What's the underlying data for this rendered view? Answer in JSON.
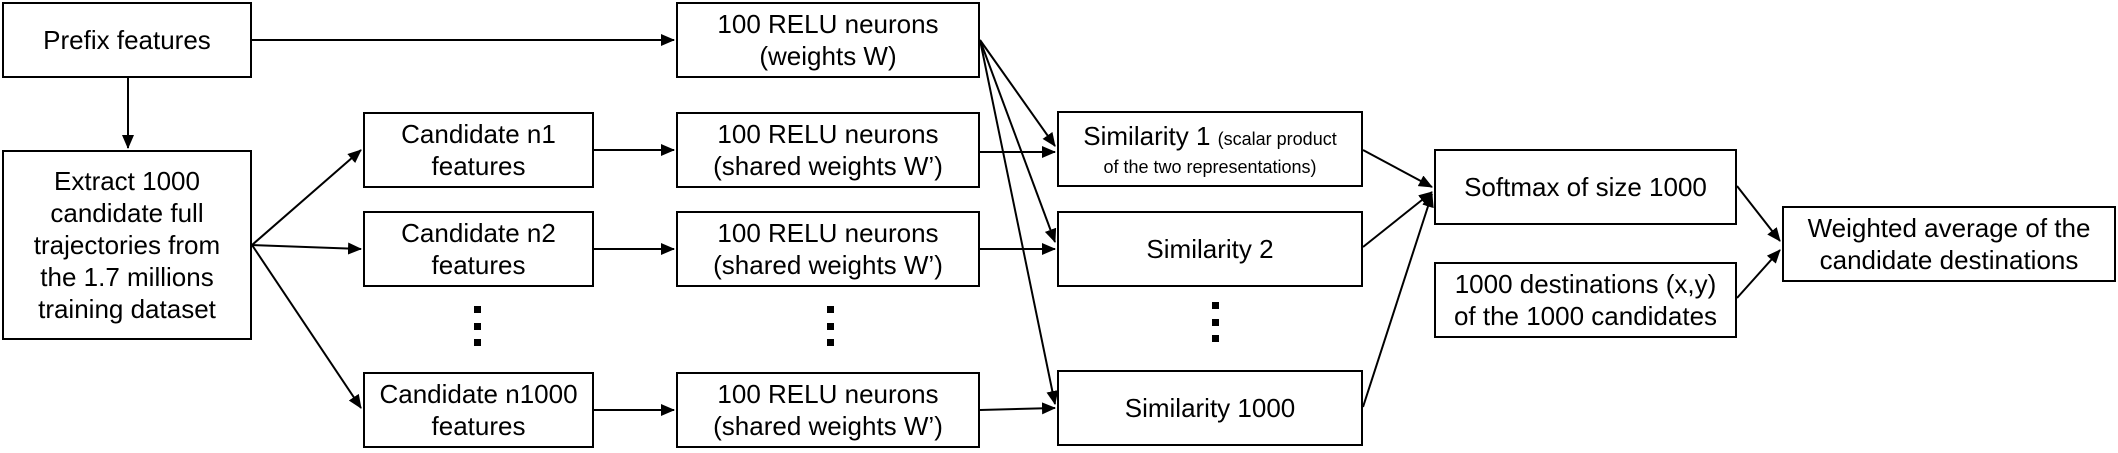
{
  "nodes": {
    "prefix": [
      "Prefix features"
    ],
    "extract": [
      "Extract 1000",
      "candidate full",
      "trajectories from",
      "the 1.7 millions",
      "training dataset"
    ],
    "relu_main": [
      "100 RELU neurons",
      "(weights W)"
    ],
    "cand1": [
      "Candidate n1",
      "features"
    ],
    "cand2": [
      "Candidate n2",
      "features"
    ],
    "cand1000": [
      "Candidate n1000",
      "features"
    ],
    "relu1": [
      "100 RELU neurons",
      "(shared weights W’)"
    ],
    "relu2": [
      "100 RELU neurons",
      "(shared weights W’)"
    ],
    "relu1000": [
      "100 RELU neurons",
      "(shared weights W’)"
    ],
    "sim1": {
      "title": "Similarity 1",
      "note_a": "(scalar product",
      "note_b": "of the two representations)"
    },
    "sim2": [
      "Similarity 2"
    ],
    "sim1000": [
      "Similarity 1000"
    ],
    "softmax": [
      "Softmax of size 1000"
    ],
    "destinations": [
      "1000 destinations (x,y)",
      "of the 1000 candidates"
    ],
    "weighted": [
      "Weighted average of the",
      "candidate destinations"
    ]
  },
  "colors": {
    "stroke": "#000000",
    "fill": "#ffffff"
  }
}
